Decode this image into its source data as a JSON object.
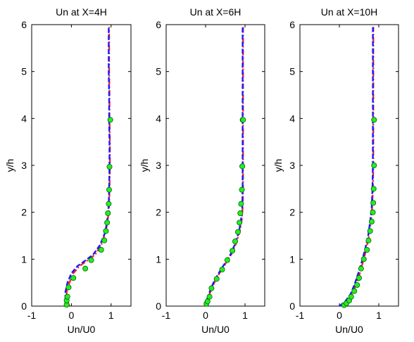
{
  "colors": {
    "curve_red": "#ff2020",
    "curve_blue": "#1a1aff",
    "marker_fill": "#22ee22",
    "marker_edge": "#006600",
    "axes": "#000000"
  },
  "chart_data": [
    {
      "type": "line",
      "title": "Un at X=4H",
      "xlabel": "Un/U0",
      "ylabel": "y/h",
      "xlim": [
        -1,
        1.5
      ],
      "ylim": [
        0,
        6
      ],
      "xticks": [
        "-1",
        "0",
        "1"
      ],
      "xtick_values": [
        -1,
        0,
        1
      ],
      "yticks": [
        "0",
        "1",
        "2",
        "3",
        "4",
        "5",
        "6"
      ],
      "ytick_values": [
        0,
        1,
        2,
        3,
        4,
        5,
        6
      ],
      "grid": false,
      "series": [
        {
          "style": "red-dashdot",
          "x": [
            -0.05,
            -0.12,
            -0.12,
            -0.05,
            0.05,
            0.2,
            0.4,
            0.6,
            0.75,
            0.85,
            0.9,
            0.93,
            0.95,
            0.96,
            0.97,
            0.97,
            0.96,
            0.96,
            0.95,
            0.95,
            0.95,
            0.95
          ],
          "y": [
            0,
            0.15,
            0.3,
            0.5,
            0.7,
            0.85,
            0.97,
            1.1,
            1.3,
            1.55,
            1.75,
            1.95,
            2.15,
            2.5,
            3.0,
            3.5,
            4.0,
            4.5,
            5.0,
            5.5,
            5.8,
            5.95
          ]
        },
        {
          "style": "blue-dashed",
          "x": [
            -0.07,
            -0.15,
            -0.15,
            -0.1,
            0.0,
            0.15,
            0.35,
            0.55,
            0.72,
            0.84,
            0.89,
            0.92,
            0.94,
            0.95,
            0.96,
            0.96,
            0.95,
            0.95,
            0.94,
            0.94,
            0.94,
            0.94
          ],
          "y": [
            0,
            0.15,
            0.3,
            0.5,
            0.7,
            0.85,
            0.97,
            1.1,
            1.3,
            1.55,
            1.75,
            1.95,
            2.15,
            2.5,
            3.0,
            3.5,
            4.0,
            4.5,
            5.0,
            5.5,
            5.8,
            5.95
          ]
        },
        {
          "style": "green-markers",
          "x": [
            -0.12,
            -0.12,
            -0.1,
            -0.07,
            0.05,
            0.35,
            0.5,
            0.75,
            0.83,
            0.87,
            0.9,
            0.92,
            0.94,
            0.95,
            0.96,
            0.98
          ],
          "y": [
            0.03,
            0.12,
            0.2,
            0.4,
            0.6,
            0.8,
            0.98,
            1.2,
            1.4,
            1.6,
            1.78,
            1.98,
            2.18,
            2.48,
            2.97,
            3.97
          ]
        }
      ]
    },
    {
      "type": "line",
      "title": "Un at X=6H",
      "xlabel": "Un/U0",
      "ylabel": "y/h",
      "xlim": [
        -1,
        1.5
      ],
      "ylim": [
        0,
        6
      ],
      "xticks": [
        "-1",
        "0",
        "1"
      ],
      "xtick_values": [
        -1,
        0,
        1
      ],
      "yticks": [
        "0",
        "1",
        "2",
        "3",
        "4",
        "5",
        "6"
      ],
      "ytick_values": [
        0,
        1,
        2,
        3,
        4,
        5,
        6
      ],
      "grid": false,
      "series": [
        {
          "style": "red-dashdot",
          "x": [
            0.0,
            0.05,
            0.12,
            0.22,
            0.35,
            0.5,
            0.65,
            0.78,
            0.87,
            0.92,
            0.94,
            0.95,
            0.95,
            0.95,
            0.95
          ],
          "y": [
            0,
            0.15,
            0.3,
            0.5,
            0.7,
            0.9,
            1.1,
            1.35,
            1.6,
            1.85,
            2.1,
            2.5,
            3.5,
            4.5,
            5.95
          ]
        },
        {
          "style": "blue-dashed",
          "x": [
            0.0,
            0.04,
            0.1,
            0.2,
            0.33,
            0.48,
            0.63,
            0.76,
            0.85,
            0.9,
            0.93,
            0.94,
            0.94,
            0.94,
            0.94
          ],
          "y": [
            0,
            0.15,
            0.3,
            0.5,
            0.7,
            0.9,
            1.1,
            1.35,
            1.6,
            1.85,
            2.1,
            2.5,
            3.5,
            4.5,
            5.95
          ]
        },
        {
          "style": "green-markers",
          "x": [
            0.02,
            0.05,
            0.1,
            0.15,
            0.28,
            0.42,
            0.55,
            0.68,
            0.75,
            0.82,
            0.86,
            0.88,
            0.9,
            0.92,
            0.93,
            0.94,
            0.95
          ],
          "y": [
            0.05,
            0.1,
            0.2,
            0.38,
            0.58,
            0.78,
            0.98,
            1.18,
            1.38,
            1.58,
            1.78,
            1.98,
            2.18,
            2.48,
            2.98,
            3.97,
            3.97
          ]
        }
      ]
    },
    {
      "type": "line",
      "title": "Un at X=10H",
      "xlabel": "Un/U0",
      "ylabel": "y/h",
      "xlim": [
        -1,
        1.5
      ],
      "ylim": [
        0,
        6
      ],
      "xticks": [
        "-1",
        "0",
        "1"
      ],
      "xtick_values": [
        -1,
        0,
        1
      ],
      "yticks": [
        "0",
        "1",
        "2",
        "3",
        "4",
        "5",
        "6"
      ],
      "ytick_values": [
        0,
        1,
        2,
        3,
        4,
        5,
        6
      ],
      "grid": false,
      "series": [
        {
          "style": "red-dashdot",
          "x": [
            0.05,
            0.2,
            0.32,
            0.42,
            0.52,
            0.6,
            0.68,
            0.75,
            0.8,
            0.83,
            0.85,
            0.86,
            0.86,
            0.86
          ],
          "y": [
            0,
            0.1,
            0.25,
            0.45,
            0.7,
            0.95,
            1.2,
            1.5,
            1.8,
            2.1,
            2.5,
            3.0,
            4.0,
            5.95
          ]
        },
        {
          "style": "blue-dashed",
          "x": [
            0.0,
            0.15,
            0.28,
            0.38,
            0.48,
            0.57,
            0.65,
            0.73,
            0.78,
            0.82,
            0.84,
            0.85,
            0.85,
            0.85
          ],
          "y": [
            0,
            0.1,
            0.25,
            0.45,
            0.7,
            0.95,
            1.2,
            1.5,
            1.8,
            2.1,
            2.5,
            3.0,
            4.0,
            5.95
          ]
        },
        {
          "style": "green-markers",
          "x": [
            0.12,
            0.18,
            0.25,
            0.3,
            0.38,
            0.45,
            0.5,
            0.55,
            0.62,
            0.7,
            0.74,
            0.78,
            0.82,
            0.85,
            0.86,
            0.87,
            0.88,
            0.88
          ],
          "y": [
            0.02,
            0.06,
            0.12,
            0.2,
            0.32,
            0.45,
            0.6,
            0.8,
            1.0,
            1.2,
            1.4,
            1.6,
            1.8,
            2.0,
            2.2,
            2.5,
            3.0,
            3.97
          ]
        }
      ]
    }
  ]
}
